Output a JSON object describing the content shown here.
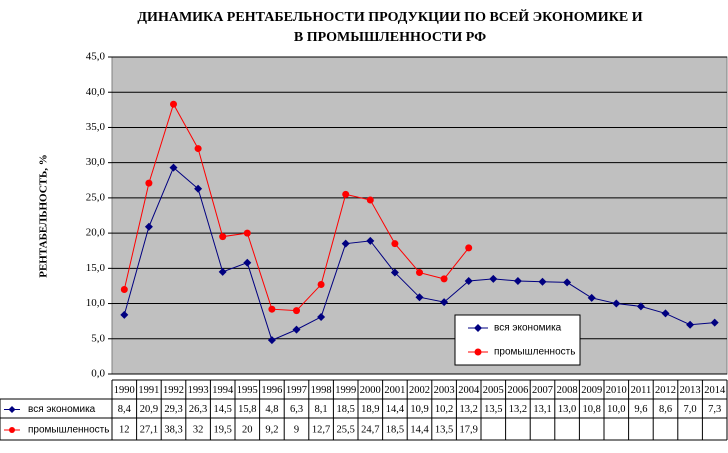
{
  "chart_data": {
    "type": "line",
    "title": [
      "ДИНАМИКА РЕНТАБЕЛЬНОСТИ  ПРОДУКЦИИ ПО ВСЕЙ ЭКОНОМИКЕ И",
      "В ПРОМЫШЛЕННОСТИ РФ"
    ],
    "y_label": "РЕНТАБЕЛЬНОСТЬ, %",
    "categories": [
      "1990",
      "1991",
      "1992",
      "1993",
      "1994",
      "1995",
      "1996",
      "1997",
      "1998",
      "1999",
      "2000",
      "2001",
      "2002",
      "2003",
      "2004",
      "2005",
      "2006",
      "2007",
      "2008",
      "2009",
      "2010",
      "2011",
      "2012",
      "2013",
      "2014"
    ],
    "series": [
      {
        "name": "вся экономика",
        "color": "#000080",
        "marker": "diamond",
        "values": [
          8.4,
          20.9,
          29.3,
          26.3,
          14.5,
          15.8,
          4.8,
          6.3,
          8.1,
          18.5,
          18.9,
          14.4,
          10.9,
          10.2,
          13.2,
          13.5,
          13.2,
          13.1,
          13.0,
          10.8,
          10.0,
          9.6,
          8.6,
          7.0,
          7.3
        ],
        "value_labels": [
          "8,4",
          "20,9",
          "29,3",
          "26,3",
          "14,5",
          "15,8",
          "4,8",
          "6,3",
          "8,1",
          "18,5",
          "18,9",
          "14,4",
          "10,9",
          "10,2",
          "13,2",
          "13,5",
          "13,2",
          "13,1",
          "13,0",
          "10,8",
          "10,0",
          "9,6",
          "8,6",
          "7,0",
          "7,3"
        ]
      },
      {
        "name": "промышленность",
        "color": "#ff0000",
        "marker": "circle",
        "values": [
          12,
          27.1,
          38.3,
          32,
          19.5,
          20,
          9.2,
          9,
          12.7,
          25.5,
          24.7,
          18.5,
          14.4,
          13.5,
          17.9,
          null,
          null,
          null,
          null,
          null,
          null,
          null,
          null,
          null,
          null
        ],
        "value_labels": [
          "12",
          "27,1",
          "38,3",
          "32",
          "19,5",
          "20",
          "9,2",
          "9",
          "12,7",
          "25,5",
          "24,7",
          "18,5",
          "14,4",
          "13,5",
          "17,9",
          null,
          null,
          null,
          null,
          null,
          null,
          null,
          null,
          null,
          null
        ]
      }
    ],
    "ylim": [
      0,
      45
    ],
    "yticks": [
      {
        "value": 0,
        "label": "0,0"
      },
      {
        "value": 5,
        "label": "5,0"
      },
      {
        "value": 10,
        "label": "10,0"
      },
      {
        "value": 15,
        "label": "15,0"
      },
      {
        "value": 20,
        "label": "20,0"
      },
      {
        "value": 25,
        "label": "25,0"
      },
      {
        "value": 30,
        "label": "30,0"
      },
      {
        "value": 35,
        "label": "35,0"
      },
      {
        "value": 40,
        "label": "40,0"
      },
      {
        "value": 45,
        "label": "45,0"
      }
    ],
    "grid": true,
    "plot_background": "#c0c0c0"
  }
}
